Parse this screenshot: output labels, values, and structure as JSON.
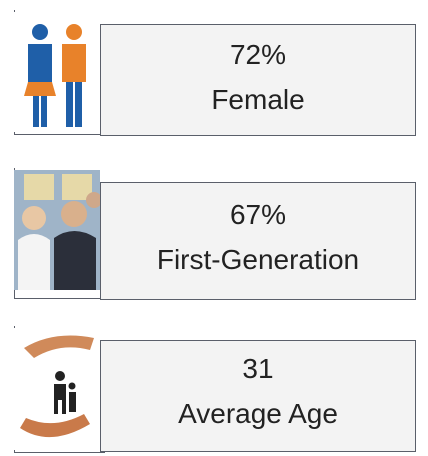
{
  "cards": [
    {
      "value": "72%",
      "label": "Female"
    },
    {
      "value": "67%",
      "label": "First-Generation"
    },
    {
      "value": "31",
      "label": "Average Age"
    }
  ]
}
